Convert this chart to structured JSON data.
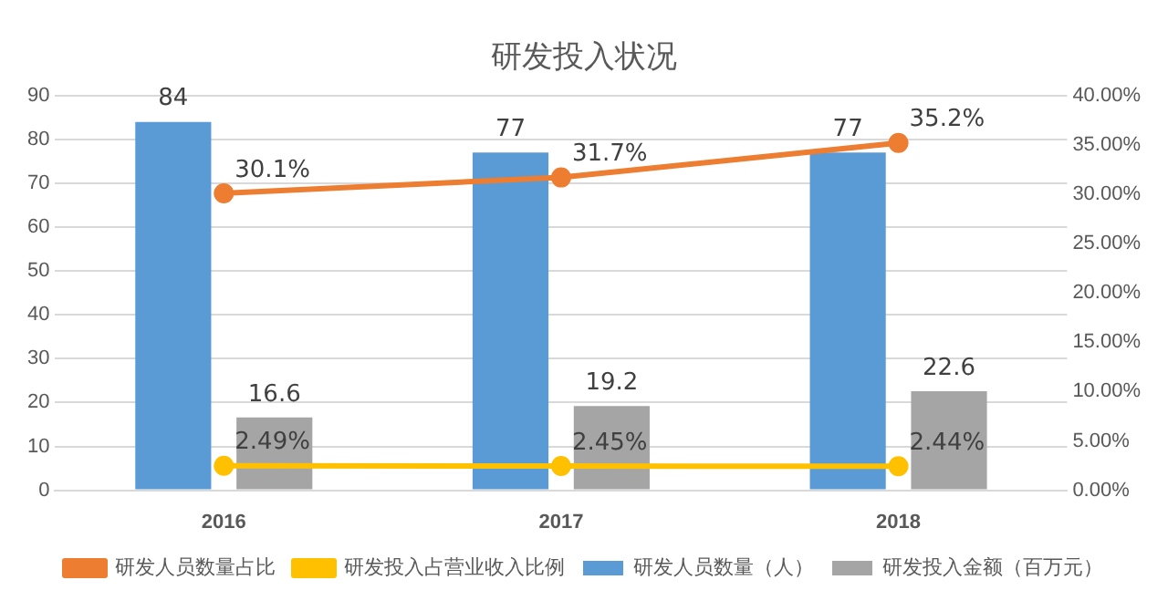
{
  "chart_data": {
    "type": "bar",
    "title": "研发投入状况",
    "categories": [
      "2016",
      "2017",
      "2018"
    ],
    "series": [
      {
        "name": "研发人员数量（人）",
        "color": "#5b9bd5",
        "values": [
          84,
          77,
          77
        ],
        "value_labels": [
          "84",
          "77",
          "77"
        ]
      },
      {
        "name": "研发投入金额（百万元）",
        "color": "#a5a5a5",
        "values": [
          16.6,
          19.2,
          22.6
        ],
        "value_labels": [
          "16.6",
          "19.2",
          "22.6"
        ]
      },
      {
        "name": "研发人员数量占比",
        "type": "line",
        "axis": "y2",
        "color": "#ed7d31",
        "values": [
          30.1,
          31.7,
          35.2
        ],
        "value_labels": [
          "30.1%",
          "31.7%",
          "35.2%"
        ]
      },
      {
        "name": "研发投入占营业收入比例",
        "type": "line",
        "axis": "y2",
        "color": "#ffc000",
        "values": [
          2.49,
          2.45,
          2.44
        ],
        "value_labels": [
          "2.49%",
          "2.45%",
          "2.44%"
        ]
      }
    ],
    "ylim": [
      0,
      90
    ],
    "yticks": [
      0,
      10,
      20,
      30,
      40,
      50,
      60,
      70,
      80,
      90
    ],
    "y2lim": [
      0,
      40
    ],
    "y2ticks": [
      {
        "value": 0,
        "label": "0.00%"
      },
      {
        "value": 5,
        "label": "5.00%"
      },
      {
        "value": 10,
        "label": "10.00%"
      },
      {
        "value": 15,
        "label": "15.00%"
      },
      {
        "value": 20,
        "label": "20.00%"
      },
      {
        "value": 25,
        "label": "25.00%"
      },
      {
        "value": 30,
        "label": "30.00%"
      },
      {
        "value": 35,
        "label": "35.00%"
      },
      {
        "value": 40,
        "label": "40.00%"
      }
    ],
    "grid": "y",
    "legend": "bottom",
    "marker": "circle"
  }
}
